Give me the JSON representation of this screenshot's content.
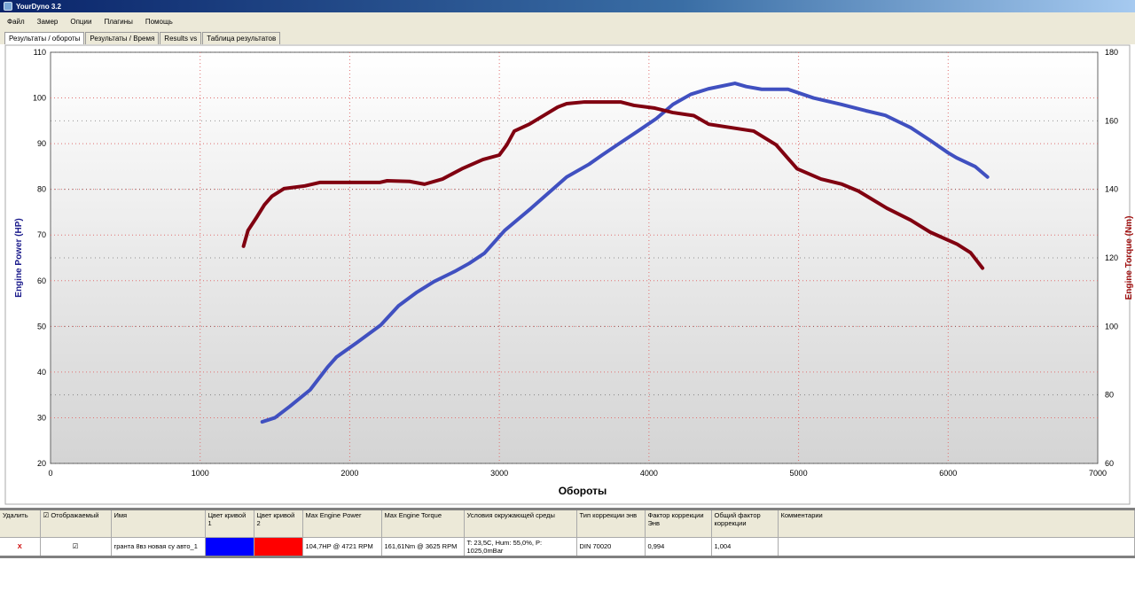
{
  "window": {
    "title": "YourDyno 3.2"
  },
  "menu": [
    "Файл",
    "Замер",
    "Опции",
    "Плагины",
    "Помощь"
  ],
  "tabs": [
    "Результаты / обороты",
    "Результаты / Время",
    "Results vs",
    "Таблица результатов"
  ],
  "chart_data": {
    "type": "line",
    "xlabel": "Обороты",
    "ylabel": "Engine Power (HP)",
    "y2label": "Engine Torque (Nm)",
    "xlim": [
      0,
      7000
    ],
    "ylim": [
      20,
      110
    ],
    "y2lim": [
      60,
      180
    ],
    "xticks": [
      0,
      1000,
      2000,
      3000,
      4000,
      5000,
      6000,
      7000
    ],
    "yticks": [
      20,
      30,
      40,
      50,
      60,
      70,
      80,
      90,
      100,
      110
    ],
    "y2ticks": [
      60,
      80,
      100,
      120,
      140,
      160,
      180
    ],
    "grid": true,
    "series": [
      {
        "axis": "left",
        "color": "#4050c0",
        "points": [
          [
            1415,
            29.1
          ],
          [
            1500,
            30
          ],
          [
            1600,
            32.5
          ],
          [
            1735,
            36.1
          ],
          [
            1850,
            41
          ],
          [
            1912,
            43.3
          ],
          [
            2050,
            46.5
          ],
          [
            2208,
            50.3
          ],
          [
            2326,
            54.5
          ],
          [
            2450,
            57.5
          ],
          [
            2563,
            59.8
          ],
          [
            2700,
            62
          ],
          [
            2799,
            63.8
          ],
          [
            2900,
            66
          ],
          [
            3036,
            71
          ],
          [
            3214,
            75.9
          ],
          [
            3450,
            82.7
          ],
          [
            3600,
            85.5
          ],
          [
            3687,
            87.5
          ],
          [
            3800,
            90
          ],
          [
            3924,
            92.7
          ],
          [
            4050,
            95.5
          ],
          [
            4161,
            98.6
          ],
          [
            4280,
            100.8
          ],
          [
            4397,
            102
          ],
          [
            4575,
            103.2
          ],
          [
            4650,
            102.5
          ],
          [
            4753,
            101.9
          ],
          [
            4930,
            101.9
          ],
          [
            5100,
            100
          ],
          [
            5285,
            98.6
          ],
          [
            5450,
            97.2
          ],
          [
            5580,
            96.2
          ],
          [
            5750,
            93.5
          ],
          [
            5876,
            90.8
          ],
          [
            6000,
            88
          ],
          [
            6056,
            86.9
          ],
          [
            6180,
            85
          ],
          [
            6263,
            82.7
          ]
        ]
      },
      {
        "axis": "right",
        "color": "#800010",
        "points": [
          [
            1290,
            123.4
          ],
          [
            1320,
            128
          ],
          [
            1380,
            132
          ],
          [
            1430,
            135.5
          ],
          [
            1480,
            138
          ],
          [
            1560,
            140.2
          ],
          [
            1700,
            141
          ],
          [
            1800,
            142
          ],
          [
            2030,
            142
          ],
          [
            2200,
            142
          ],
          [
            2250,
            142.5
          ],
          [
            2400,
            142.3
          ],
          [
            2500,
            141.5
          ],
          [
            2620,
            143
          ],
          [
            2750,
            146
          ],
          [
            2890,
            148.7
          ],
          [
            3000,
            150
          ],
          [
            3050,
            153
          ],
          [
            3100,
            157
          ],
          [
            3200,
            159
          ],
          [
            3390,
            164
          ],
          [
            3450,
            165
          ],
          [
            3570,
            165.5
          ],
          [
            3810,
            165.5
          ],
          [
            3900,
            164.5
          ],
          [
            4040,
            163.7
          ],
          [
            4160,
            162.4
          ],
          [
            4300,
            161.5
          ],
          [
            4400,
            159
          ],
          [
            4550,
            158
          ],
          [
            4700,
            157
          ],
          [
            4850,
            153
          ],
          [
            4990,
            146
          ],
          [
            5150,
            143
          ],
          [
            5290,
            141.5
          ],
          [
            5400,
            139.5
          ],
          [
            5590,
            134.5
          ],
          [
            5750,
            131
          ],
          [
            5880,
            127.5
          ],
          [
            6060,
            124
          ],
          [
            6150,
            121.5
          ],
          [
            6230,
            117
          ]
        ]
      }
    ]
  },
  "results": {
    "headers": [
      "Удалить",
      "Отображаемый",
      "Имя",
      "Цвет кривой 1",
      "Цвет кривой 2",
      "Max Engine Power",
      "Max Engine Torque",
      "Условия окружающей среды",
      "Тип коррекции энв",
      "Фактор коррекции Энв",
      "Общий фактор коррекции",
      "Комментарии"
    ],
    "rows": [
      {
        "delete": "X",
        "visible": "☑",
        "name": "гранта 8вз новая су авто_1",
        "color1": "#0000ff",
        "color2": "#ff0000",
        "power": "104,7HP @ 4721 RPM",
        "torque": "161,61Nm @ 3625 RPM",
        "conditions": "T: 23,5C, Hum: 55,0%, P: 1025,0mBar",
        "corr_type": "DIN 70020",
        "corr_factor": "0,994",
        "total_factor": "1,004",
        "comment": ""
      }
    ]
  }
}
